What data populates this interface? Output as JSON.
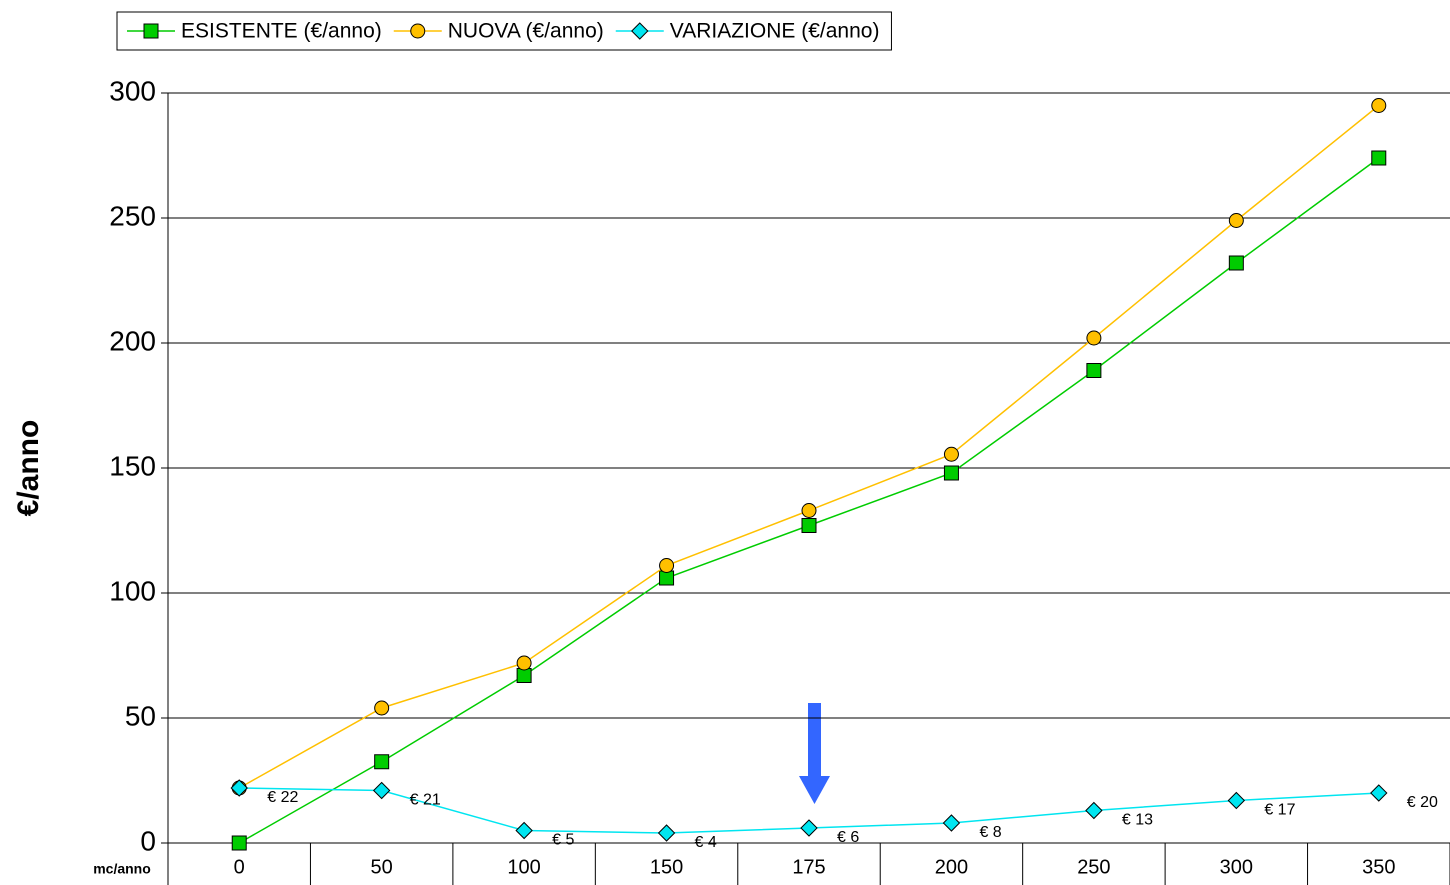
{
  "chart_data": {
    "type": "line",
    "y_label": "€/anno",
    "x_label": "mc/anno",
    "categories": [
      "0",
      "50",
      "100",
      "150",
      "175",
      "200",
      "250",
      "300",
      "350"
    ],
    "series": [
      {
        "name": "ESISTENTE (€/anno)",
        "color": "#00cc00",
        "marker": "square",
        "values": [
          0,
          32.5,
          67,
          106,
          127,
          148,
          189,
          232,
          274
        ]
      },
      {
        "name": "NUOVA (€/anno)",
        "color": "#ffc000",
        "marker": "circle",
        "values": [
          22,
          54,
          72,
          111,
          133,
          155.5,
          202,
          249,
          295
        ]
      },
      {
        "name": "VARIAZIONE (€/anno)",
        "color": "#00e5f0",
        "marker": "diamond",
        "values": [
          22,
          21,
          5,
          4,
          6,
          8,
          13,
          17,
          20
        ],
        "value_labels": [
          "€ 22",
          "€ 21",
          "€ 5",
          "€ 4",
          "€ 6",
          "€ 8",
          "€ 13",
          "€ 17",
          "€ 20"
        ]
      }
    ],
    "ylim": [
      0,
      300
    ],
    "yticks": [
      0,
      50,
      100,
      150,
      200,
      250,
      300
    ],
    "grid": true,
    "legend": "top"
  }
}
